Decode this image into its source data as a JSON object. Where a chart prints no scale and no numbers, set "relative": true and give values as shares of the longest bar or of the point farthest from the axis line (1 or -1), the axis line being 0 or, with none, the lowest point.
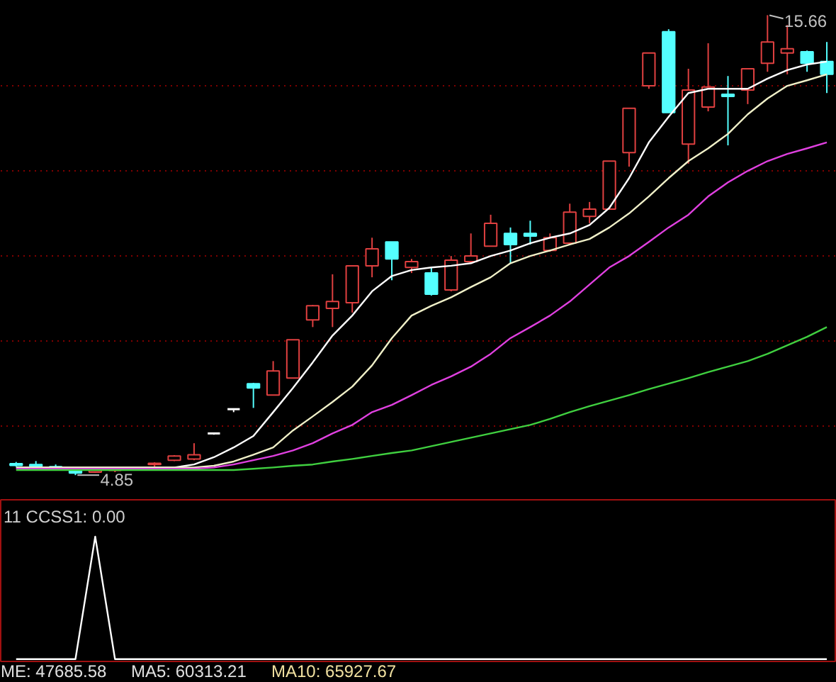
{
  "chart_data": [
    {
      "type": "candlestick",
      "categories": [
        null,
        null,
        null,
        null,
        null,
        null,
        null,
        null,
        null,
        null,
        null,
        null,
        null,
        null,
        null,
        null,
        null,
        null,
        null,
        null,
        null,
        null,
        null,
        null,
        null,
        null,
        null,
        null,
        null,
        null,
        null,
        null,
        null,
        null,
        null,
        null,
        null,
        null,
        null,
        null,
        null,
        null
      ],
      "ohlc": [
        [
          5.12,
          5.16,
          5.05,
          5.08
        ],
        [
          5.1,
          5.18,
          5.05,
          5.06
        ],
        [
          5.05,
          5.1,
          5.0,
          5.02
        ],
        [
          5.0,
          5.02,
          4.85,
          4.9
        ],
        [
          4.92,
          5.0,
          4.9,
          4.96
        ],
        [
          4.96,
          5.02,
          4.92,
          5.0
        ],
        null,
        [
          5.1,
          5.15,
          5.05,
          5.13
        ],
        [
          5.2,
          5.32,
          5.18,
          5.3
        ],
        [
          5.23,
          5.6,
          5.2,
          5.33
        ],
        [
          5.83,
          5.85,
          5.8,
          5.83
        ],
        [
          6.4,
          6.42,
          6.33,
          6.4
        ],
        [
          7.0,
          7.02,
          6.43,
          6.9
        ],
        [
          6.73,
          7.53,
          6.73,
          7.3
        ],
        [
          7.13,
          8.03,
          7.13,
          8.03
        ],
        [
          8.5,
          8.85,
          8.33,
          8.83
        ],
        [
          8.77,
          9.57,
          8.33,
          8.93
        ],
        [
          8.9,
          9.77,
          8.67,
          9.77
        ],
        [
          9.77,
          10.43,
          9.5,
          10.17
        ],
        [
          10.33,
          10.33,
          9.43,
          9.93
        ],
        [
          9.73,
          9.93,
          9.6,
          9.87
        ],
        [
          9.6,
          9.73,
          9.07,
          9.1
        ],
        [
          9.2,
          10.0,
          9.17,
          9.9
        ],
        [
          9.87,
          10.53,
          9.83,
          10.0
        ],
        [
          10.23,
          10.97,
          10.23,
          10.77
        ],
        [
          10.53,
          10.67,
          9.83,
          10.27
        ],
        [
          10.53,
          10.83,
          10.27,
          10.47
        ],
        [
          10.13,
          10.53,
          10.1,
          10.43
        ],
        [
          10.3,
          11.23,
          10.3,
          11.03
        ],
        [
          10.93,
          11.27,
          10.77,
          11.1
        ],
        [
          11.1,
          12.23,
          11.1,
          12.23
        ],
        [
          12.43,
          13.47,
          12.1,
          13.47
        ],
        [
          14.0,
          14.77,
          13.93,
          14.77
        ],
        [
          15.27,
          15.33,
          13.37,
          13.37
        ],
        [
          12.63,
          14.4,
          12.17,
          13.9
        ],
        [
          13.5,
          15.0,
          13.4,
          13.97
        ],
        [
          13.8,
          14.23,
          12.6,
          13.75
        ],
        [
          13.9,
          14.4,
          13.57,
          14.4
        ],
        [
          14.53,
          15.66,
          14.33,
          15.03
        ],
        [
          14.77,
          15.43,
          14.27,
          14.87
        ],
        [
          14.8,
          14.83,
          14.33,
          14.53
        ],
        [
          14.57,
          15.03,
          13.83,
          14.27
        ]
      ],
      "series": [
        {
          "type": "line",
          "color": "#ffffff",
          "values": [
            5.03,
            5.03,
            5.03,
            5.03,
            5.03,
            5.03,
            5.03,
            5.03,
            5.03,
            5.1,
            5.27,
            5.5,
            5.77,
            6.33,
            6.9,
            7.5,
            8.13,
            8.6,
            9.17,
            9.53,
            9.67,
            9.73,
            9.77,
            9.83,
            10.0,
            10.13,
            10.3,
            10.43,
            10.53,
            10.73,
            11.13,
            11.83,
            12.67,
            13.27,
            13.83,
            13.93,
            13.93,
            13.93,
            14.17,
            14.37,
            14.5,
            14.57
          ]
        },
        {
          "type": "line",
          "color": "#f0f0c8",
          "values": [
            5.03,
            5.03,
            5.03,
            5.03,
            5.03,
            5.03,
            5.03,
            5.03,
            5.03,
            5.03,
            5.07,
            5.17,
            5.33,
            5.5,
            5.9,
            6.23,
            6.57,
            6.93,
            7.43,
            8.07,
            8.6,
            8.83,
            9.03,
            9.27,
            9.5,
            9.83,
            10.0,
            10.13,
            10.27,
            10.4,
            10.67,
            11.0,
            11.4,
            11.83,
            12.23,
            12.53,
            12.87,
            13.33,
            13.7,
            14.0,
            14.13,
            14.27
          ]
        },
        {
          "type": "line",
          "color": "#e040e0",
          "values": [
            5.0,
            5.0,
            5.0,
            5.0,
            5.0,
            5.0,
            5.0,
            5.0,
            5.0,
            5.0,
            5.03,
            5.1,
            5.2,
            5.3,
            5.43,
            5.6,
            5.83,
            6.03,
            6.33,
            6.5,
            6.73,
            6.97,
            7.17,
            7.4,
            7.7,
            8.07,
            8.33,
            8.6,
            8.93,
            9.33,
            9.73,
            10.0,
            10.33,
            10.67,
            10.97,
            11.4,
            11.73,
            12.0,
            12.23,
            12.4,
            12.53,
            12.67
          ]
        },
        {
          "type": "line",
          "color": "#40d040",
          "values": [
            4.97,
            4.97,
            4.97,
            4.97,
            4.97,
            4.97,
            4.97,
            4.97,
            4.97,
            4.97,
            4.97,
            4.97,
            5.0,
            5.03,
            5.07,
            5.1,
            5.17,
            5.23,
            5.3,
            5.37,
            5.43,
            5.53,
            5.63,
            5.73,
            5.83,
            5.93,
            6.03,
            6.17,
            6.33,
            6.47,
            6.6,
            6.73,
            6.87,
            7.0,
            7.13,
            7.27,
            7.4,
            7.53,
            7.7,
            7.9,
            8.1,
            8.33
          ]
        }
      ],
      "colors": [
        "#54ffff",
        "#54ffff",
        "#54ffff",
        "#54ffff",
        "#e04040",
        "#e04040",
        "#e04040",
        "#e04040",
        "#e04040",
        "#e04040",
        "#ffffff",
        "#ffffff",
        "#54ffff",
        "#e04040",
        "#e04040",
        "#e04040",
        "#e04040",
        "#e04040",
        "#e04040",
        "#54ffff",
        "#e04040",
        "#54ffff",
        "#e04040",
        "#e04040",
        "#e04040",
        "#54ffff",
        "#54ffff",
        "#e04040",
        "#e04040",
        "#e04040",
        "#e04040",
        "#e04040",
        "#e04040",
        "#54ffff",
        "#e04040",
        "#e04040",
        "#54ffff",
        "#e04040",
        "#e04040",
        "#e04040",
        "#54ffff",
        "#54ffff"
      ],
      "ylim": [
        4.27,
        16.0
      ],
      "yticks": [
        {
          "value": 6,
          "label": null
        },
        {
          "value": 8,
          "label": null
        },
        {
          "value": 10,
          "label": null
        },
        {
          "value": 12,
          "label": null
        },
        {
          "value": 14,
          "label": null
        }
      ],
      "grid": "y",
      "tick_labels": false,
      "marker": "none",
      "line_style": "solid",
      "annotations": [
        "15.66",
        "4.85"
      ]
    },
    {
      "type": "line",
      "title": "11 CCSS1: 0.00",
      "relative": true,
      "categories": [
        null,
        null,
        null,
        null,
        null,
        null,
        null,
        null,
        null,
        null,
        null,
        null,
        null,
        null,
        null,
        null,
        null,
        null,
        null,
        null,
        null,
        null,
        null,
        null,
        null,
        null,
        null,
        null,
        null,
        null,
        null,
        null,
        null,
        null,
        null,
        null,
        null,
        null,
        null,
        null,
        null,
        null
      ],
      "series": [
        {
          "color": "#ffffff",
          "values": [
            0,
            0,
            0,
            0,
            1,
            0,
            0,
            0,
            0,
            0,
            0,
            0,
            0,
            0,
            0,
            0,
            0,
            0,
            0,
            0,
            0,
            0,
            0,
            0,
            0,
            0,
            0,
            0,
            0,
            0,
            0,
            0,
            0,
            0,
            0,
            0,
            0,
            0,
            0,
            0,
            0,
            0
          ]
        }
      ],
      "tick_labels": false,
      "grid": false
    },
    {
      "type": "other",
      "annotations": [
        "ME: 47685.58",
        "MA5: 60313.21",
        "MA10: 65927.67"
      ]
    }
  ]
}
